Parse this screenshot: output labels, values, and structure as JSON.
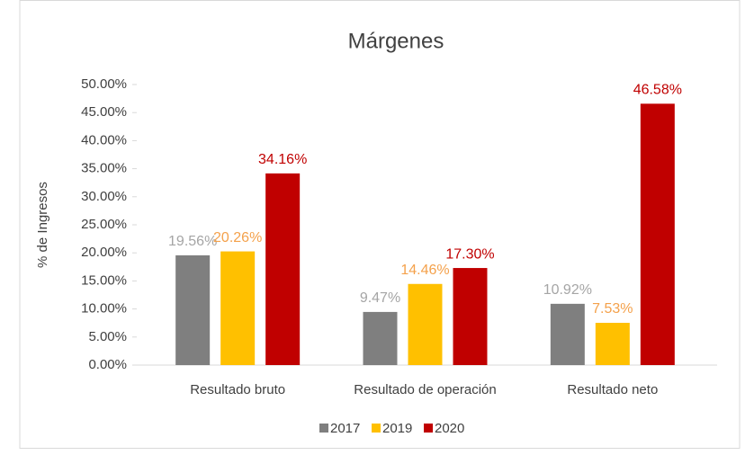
{
  "chart_data": {
    "type": "bar",
    "title": "Márgenes",
    "y_label": "% de Ingresos",
    "categories": [
      "Resultado bruto",
      "Resultado de operación",
      "Resultado neto"
    ],
    "series": [
      {
        "name": "2017",
        "color": "#7f7f7f",
        "label_color": "#a5a5a5",
        "values": [
          19.56,
          9.47,
          10.92
        ],
        "value_labels": [
          "19.56%",
          "9.47%",
          "10.92%"
        ]
      },
      {
        "name": "2019",
        "color": "#ffc000",
        "label_color": "#f4a14b",
        "values": [
          20.26,
          14.46,
          7.53
        ],
        "value_labels": [
          "20.26%",
          "14.46%",
          "7.53%"
        ]
      },
      {
        "name": "2020",
        "color": "#c00000",
        "label_color": "#c00000",
        "values": [
          34.16,
          17.3,
          46.58
        ],
        "value_labels": [
          "34.16%",
          "17.30%",
          "46.58%"
        ]
      }
    ],
    "ylim": [
      0,
      50
    ],
    "yticks": [
      {
        "value": 0,
        "label": "0.00%"
      },
      {
        "value": 5,
        "label": "5.00%"
      },
      {
        "value": 10,
        "label": "10.00%"
      },
      {
        "value": 15,
        "label": "15.00%"
      },
      {
        "value": 20,
        "label": "20.00%"
      },
      {
        "value": 25,
        "label": "25.00%"
      },
      {
        "value": 30,
        "label": "30.00%"
      },
      {
        "value": 35,
        "label": "35.00%"
      },
      {
        "value": 40,
        "label": "40.00%"
      },
      {
        "value": 45,
        "label": "45.00%"
      },
      {
        "value": 50,
        "label": "50.00%"
      }
    ],
    "legend": "bottom"
  }
}
